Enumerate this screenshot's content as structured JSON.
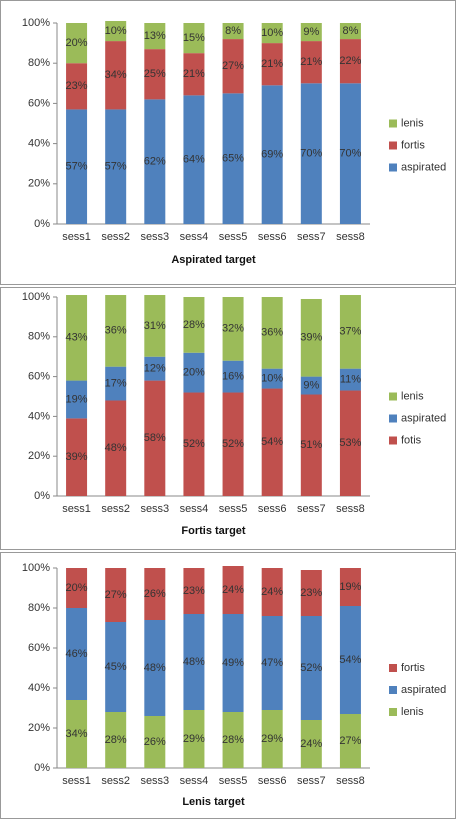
{
  "chart_data": [
    {
      "type": "bar",
      "stacked": true,
      "title": "Aspirated target",
      "categories": [
        "sess1",
        "sess2",
        "sess3",
        "sess4",
        "sess5",
        "sess6",
        "sess7",
        "sess8"
      ],
      "series": [
        {
          "name": "aspirated",
          "color": "#4f81bd",
          "values": [
            57,
            57,
            62,
            64,
            65,
            69,
            70,
            70
          ],
          "value_labels": [
            "57%",
            "57%",
            "62%",
            "64%",
            "65%",
            "69%",
            "70%",
            "70%"
          ]
        },
        {
          "name": "fortis",
          "color": "#c0504d",
          "values": [
            23,
            34,
            25,
            21,
            27,
            21,
            21,
            22
          ],
          "value_labels": [
            "23%",
            "34%",
            "25%",
            "21%",
            "27%",
            "21%",
            "21%",
            "22%"
          ]
        },
        {
          "name": "lenis",
          "color": "#9bbb59",
          "values": [
            20,
            10,
            13,
            15,
            8,
            10,
            9,
            8
          ],
          "value_labels": [
            "20%",
            "10%",
            "13%",
            "15%",
            "8%",
            "10%",
            "9%",
            "8%"
          ]
        }
      ],
      "ylim": [
        0,
        100
      ],
      "yticks": [
        {
          "value": 0,
          "label": "0%"
        },
        {
          "value": 20,
          "label": "20%"
        },
        {
          "value": 40,
          "label": "40%"
        },
        {
          "value": 60,
          "label": "60%"
        },
        {
          "value": 80,
          "label": "80%"
        },
        {
          "value": 100,
          "label": "100%"
        }
      ],
      "grid": false,
      "legend": "right"
    },
    {
      "type": "bar",
      "stacked": true,
      "title": "Fortis target",
      "categories": [
        "sess1",
        "sess2",
        "sess3",
        "sess4",
        "sess5",
        "sess6",
        "sess7",
        "sess8"
      ],
      "series": [
        {
          "name": "fotis",
          "color": "#c0504d",
          "values": [
            39,
            48,
            58,
            52,
            52,
            54,
            51,
            53
          ],
          "value_labels": [
            "39%",
            "48%",
            "58%",
            "52%",
            "52%",
            "54%",
            "51%",
            "53%"
          ]
        },
        {
          "name": "aspirated",
          "color": "#4f81bd",
          "values": [
            19,
            17,
            12,
            20,
            16,
            10,
            9,
            11
          ],
          "value_labels": [
            "19%",
            "17%",
            "12%",
            "20%",
            "16%",
            "10%",
            "9%",
            "11%"
          ]
        },
        {
          "name": "lenis",
          "color": "#9bbb59",
          "values": [
            43,
            36,
            31,
            28,
            32,
            36,
            39,
            37
          ],
          "value_labels": [
            "43%",
            "36%",
            "31%",
            "28%",
            "32%",
            "36%",
            "39%",
            "37%"
          ]
        }
      ],
      "ylim": [
        0,
        100
      ],
      "yticks": [
        {
          "value": 0,
          "label": "0%"
        },
        {
          "value": 20,
          "label": "20%"
        },
        {
          "value": 40,
          "label": "40%"
        },
        {
          "value": 60,
          "label": "60%"
        },
        {
          "value": 80,
          "label": "80%"
        },
        {
          "value": 100,
          "label": "100%"
        }
      ],
      "grid": false,
      "legend": "right"
    },
    {
      "type": "bar",
      "stacked": true,
      "title": "Lenis target",
      "categories": [
        "sess1",
        "sess2",
        "sess3",
        "sess4",
        "sess5",
        "sess6",
        "sess7",
        "sess8"
      ],
      "series": [
        {
          "name": "lenis",
          "color": "#9bbb59",
          "values": [
            34,
            28,
            26,
            29,
            28,
            29,
            24,
            27
          ],
          "value_labels": [
            "34%",
            "28%",
            "26%",
            "29%",
            "28%",
            "29%",
            "24%",
            "27%"
          ]
        },
        {
          "name": "aspirated",
          "color": "#4f81bd",
          "values": [
            46,
            45,
            48,
            48,
            49,
            47,
            52,
            54
          ],
          "value_labels": [
            "46%",
            "45%",
            "48%",
            "48%",
            "49%",
            "47%",
            "52%",
            "54%"
          ]
        },
        {
          "name": "fortis",
          "color": "#c0504d",
          "values": [
            20,
            27,
            26,
            23,
            24,
            24,
            23,
            19
          ],
          "value_labels": [
            "20%",
            "27%",
            "26%",
            "23%",
            "24%",
            "24%",
            "23%",
            "19%"
          ]
        }
      ],
      "ylim": [
        0,
        100
      ],
      "yticks": [
        {
          "value": 0,
          "label": "0%"
        },
        {
          "value": 20,
          "label": "20%"
        },
        {
          "value": 40,
          "label": "40%"
        },
        {
          "value": 60,
          "label": "60%"
        },
        {
          "value": 80,
          "label": "80%"
        },
        {
          "value": 100,
          "label": "100%"
        }
      ],
      "grid": false,
      "legend": "right"
    }
  ]
}
